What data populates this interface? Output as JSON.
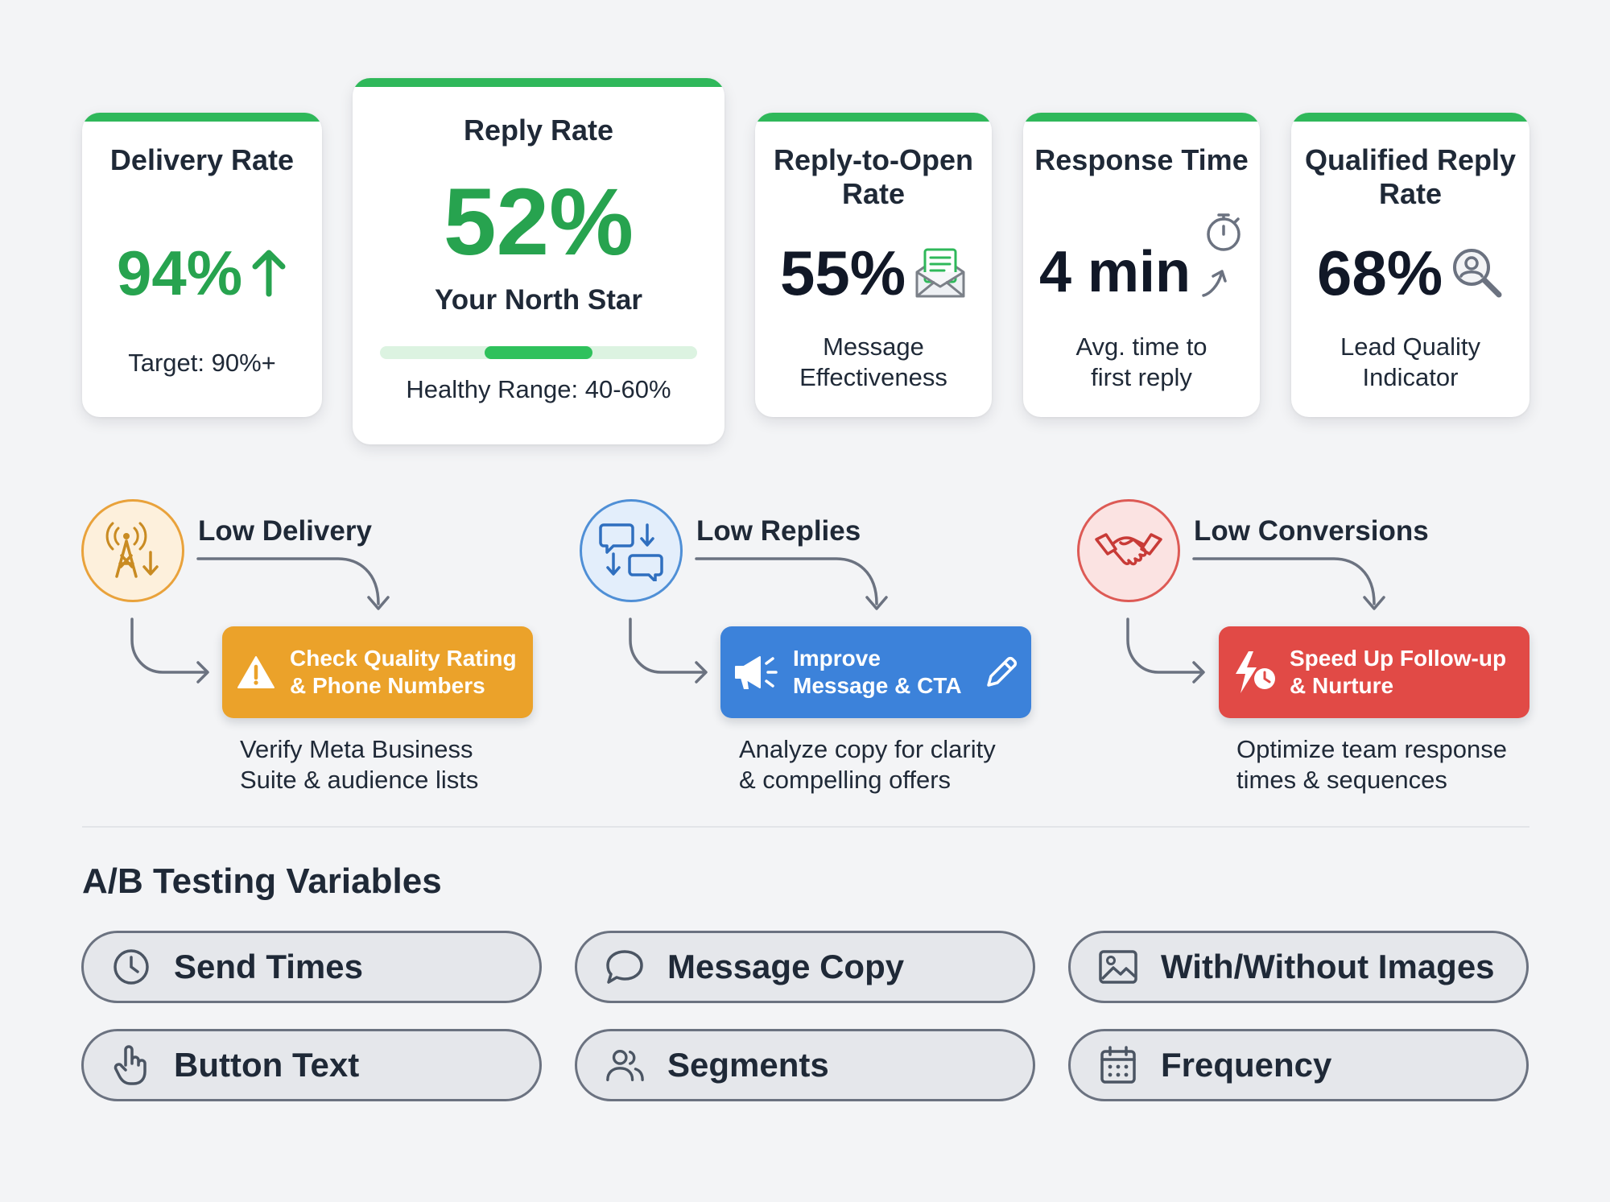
{
  "metrics": {
    "delivery": {
      "title": "Delivery Rate",
      "value": "94%",
      "sub": "Target: 90%+"
    },
    "reply": {
      "title": "Reply Rate",
      "value": "52%",
      "tagline": "Your North Star",
      "range": "Healthy Range: 40-60%",
      "range_fill_start": 0.33,
      "range_fill_end": 0.67
    },
    "reply_to_open": {
      "title": "Reply-to-Open Rate",
      "value": "55%",
      "sub_line1": "Message",
      "sub_line2": "Effectiveness"
    },
    "response_time": {
      "title": "Response Time",
      "value": "4 min",
      "sub_line1": "Avg. time to",
      "sub_line2": "first reply"
    },
    "qualified": {
      "title_line1": "Qualified Reply",
      "title_line2": "Rate",
      "value": "68%",
      "sub_line1": "Lead Quality",
      "sub_line2": "Indicator"
    }
  },
  "issues": [
    {
      "title": "Low Delivery",
      "icon": "cell-tower-icon",
      "action_line1": "Check Quality Rating",
      "action_line2": "& Phone Numbers",
      "action_icon": "warning-icon",
      "desc_line1": "Verify Meta Business",
      "desc_line2": "Suite & audience lists",
      "color": "#eba22a"
    },
    {
      "title": "Low Replies",
      "icon": "chat-exchange-icon",
      "action_line1": "Improve",
      "action_line2": "Message & CTA",
      "action_icon": "megaphone-icon",
      "desc_line1": "Analyze copy for clarity",
      "desc_line2": "& compelling offers",
      "color": "#3c82da"
    },
    {
      "title": "Low Conversions",
      "icon": "handshake-icon",
      "action_line1": "Speed Up Follow-up",
      "action_line2": "& Nurture",
      "action_icon": "bolt-clock-icon",
      "desc_line1": "Optimize team response",
      "desc_line2": "times & sequences",
      "color": "#e14a46"
    }
  ],
  "ab_testing": {
    "heading": "A/B Testing Variables",
    "variables": [
      {
        "label": "Send Times",
        "icon": "clock-icon"
      },
      {
        "label": "Message Copy",
        "icon": "speech-bubble-icon"
      },
      {
        "label": "With/Without Images",
        "icon": "image-icon"
      },
      {
        "label": "Button Text",
        "icon": "pointer-hand-icon"
      },
      {
        "label": "Segments",
        "icon": "users-icon"
      },
      {
        "label": "Frequency",
        "icon": "calendar-icon"
      }
    ]
  },
  "colors": {
    "accent_green": "#27a34f",
    "bar_green": "#2fb85a",
    "orange": "#eba22a",
    "blue": "#3c82da",
    "red": "#e14a46"
  }
}
